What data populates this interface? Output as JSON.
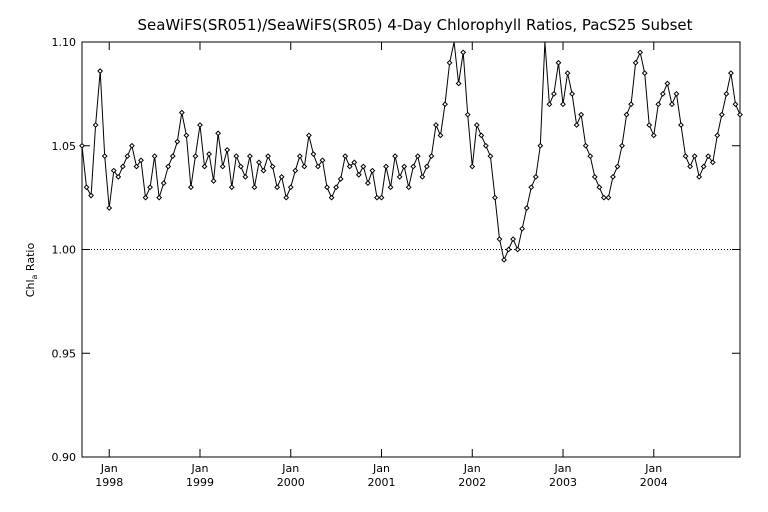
{
  "chart_data": {
    "type": "line",
    "title": "SeaWiFS(SR051)/SeaWiFS(SR05) 4-Day Chlorophyll Ratios, PacS25 Subset",
    "ylabel_main": "Chl",
    "ylabel_sub": "a",
    "ylabel_rest": " Ratio",
    "xlabel": "",
    "ylim": [
      0.9,
      1.1
    ],
    "xlim": [
      1997.7,
      2004.95
    ],
    "grid": false,
    "reference_line": 1.0,
    "y_ticks": [
      0.9,
      0.95,
      1.0,
      1.05,
      1.1
    ],
    "y_tick_labels": [
      "0.90",
      "0.95",
      "1.00",
      "1.05",
      "1.10"
    ],
    "x_ticks": [
      {
        "value": 1998.0,
        "month": "Jan",
        "year": "1998"
      },
      {
        "value": 1999.0,
        "month": "Jan",
        "year": "1999"
      },
      {
        "value": 2000.0,
        "month": "Jan",
        "year": "2000"
      },
      {
        "value": 2001.0,
        "month": "Jan",
        "year": "2001"
      },
      {
        "value": 2002.0,
        "month": "Jan",
        "year": "2002"
      },
      {
        "value": 2003.0,
        "month": "Jan",
        "year": "2003"
      },
      {
        "value": 2004.0,
        "month": "Jan",
        "year": "2004"
      }
    ],
    "series": [
      {
        "x": [
          1997.7,
          1997.75,
          1997.8,
          1997.85,
          1997.9,
          1997.95,
          1998.0,
          1998.05,
          1998.1,
          1998.15,
          1998.2,
          1998.25,
          1998.3,
          1998.35,
          1998.4,
          1998.45,
          1998.5,
          1998.55,
          1998.6,
          1998.65,
          1998.7,
          1998.75,
          1998.8,
          1998.85,
          1998.9,
          1998.95,
          1999.0,
          1999.05,
          1999.1,
          1999.15,
          1999.2,
          1999.25,
          1999.3,
          1999.35,
          1999.4,
          1999.45,
          1999.5,
          1999.55,
          1999.6,
          1999.65,
          1999.7,
          1999.75,
          1999.8,
          1999.85,
          1999.9,
          1999.95,
          2000.0,
          2000.05,
          2000.1,
          2000.15,
          2000.2,
          2000.25,
          2000.3,
          2000.35,
          2000.4,
          2000.45,
          2000.5,
          2000.55,
          2000.6,
          2000.65,
          2000.7,
          2000.75,
          2000.8,
          2000.85,
          2000.9,
          2000.95,
          2001.0,
          2001.05,
          2001.1,
          2001.15,
          2001.2,
          2001.25,
          2001.3,
          2001.35,
          2001.4,
          2001.45,
          2001.5,
          2001.55,
          2001.6,
          2001.65,
          2001.7,
          2001.75,
          2001.8,
          2001.85,
          2001.9,
          2001.95,
          2002.0,
          2002.05,
          2002.1,
          2002.15,
          2002.2,
          2002.25,
          2002.3,
          2002.35,
          2002.4,
          2002.45,
          2002.5,
          2002.55,
          2002.6,
          2002.65,
          2002.7,
          2002.75,
          2002.8,
          2002.85,
          2002.9,
          2002.95,
          2003.0,
          2003.05,
          2003.1,
          2003.15,
          2003.2,
          2003.25,
          2003.3,
          2003.35,
          2003.4,
          2003.45,
          2003.5,
          2003.55,
          2003.6,
          2003.65,
          2003.7,
          2003.75,
          2003.8,
          2003.85,
          2003.9,
          2003.95,
          2004.0,
          2004.05,
          2004.1,
          2004.15,
          2004.2,
          2004.25,
          2004.3,
          2004.35,
          2004.4,
          2004.45,
          2004.5,
          2004.55,
          2004.6,
          2004.65,
          2004.7,
          2004.75,
          2004.8,
          2004.85,
          2004.9,
          2004.95
        ],
        "y": [
          1.05,
          1.03,
          1.026,
          1.06,
          1.086,
          1.045,
          1.02,
          1.038,
          1.035,
          1.04,
          1.045,
          1.05,
          1.04,
          1.043,
          1.025,
          1.03,
          1.045,
          1.025,
          1.032,
          1.04,
          1.045,
          1.052,
          1.066,
          1.055,
          1.03,
          1.045,
          1.06,
          1.04,
          1.046,
          1.033,
          1.056,
          1.04,
          1.048,
          1.03,
          1.045,
          1.04,
          1.035,
          1.045,
          1.03,
          1.042,
          1.038,
          1.045,
          1.04,
          1.03,
          1.035,
          1.025,
          1.03,
          1.038,
          1.045,
          1.04,
          1.055,
          1.046,
          1.04,
          1.043,
          1.03,
          1.025,
          1.03,
          1.034,
          1.045,
          1.04,
          1.042,
          1.036,
          1.04,
          1.032,
          1.038,
          1.025,
          1.025,
          1.04,
          1.03,
          1.045,
          1.035,
          1.04,
          1.03,
          1.04,
          1.045,
          1.035,
          1.04,
          1.045,
          1.06,
          1.055,
          1.07,
          1.09,
          1.105,
          1.08,
          1.095,
          1.065,
          1.04,
          1.06,
          1.055,
          1.05,
          1.045,
          1.025,
          1.005,
          0.995,
          1.0,
          1.005,
          1.0,
          1.01,
          1.02,
          1.03,
          1.035,
          1.05,
          1.11,
          1.07,
          1.075,
          1.09,
          1.07,
          1.085,
          1.075,
          1.06,
          1.065,
          1.05,
          1.045,
          1.035,
          1.03,
          1.025,
          1.025,
          1.035,
          1.04,
          1.05,
          1.065,
          1.07,
          1.09,
          1.095,
          1.085,
          1.06,
          1.055,
          1.07,
          1.075,
          1.08,
          1.07,
          1.075,
          1.06,
          1.045,
          1.04,
          1.045,
          1.035,
          1.04,
          1.045,
          1.042,
          1.055,
          1.065,
          1.075,
          1.085,
          1.07,
          1.065
        ]
      }
    ]
  }
}
